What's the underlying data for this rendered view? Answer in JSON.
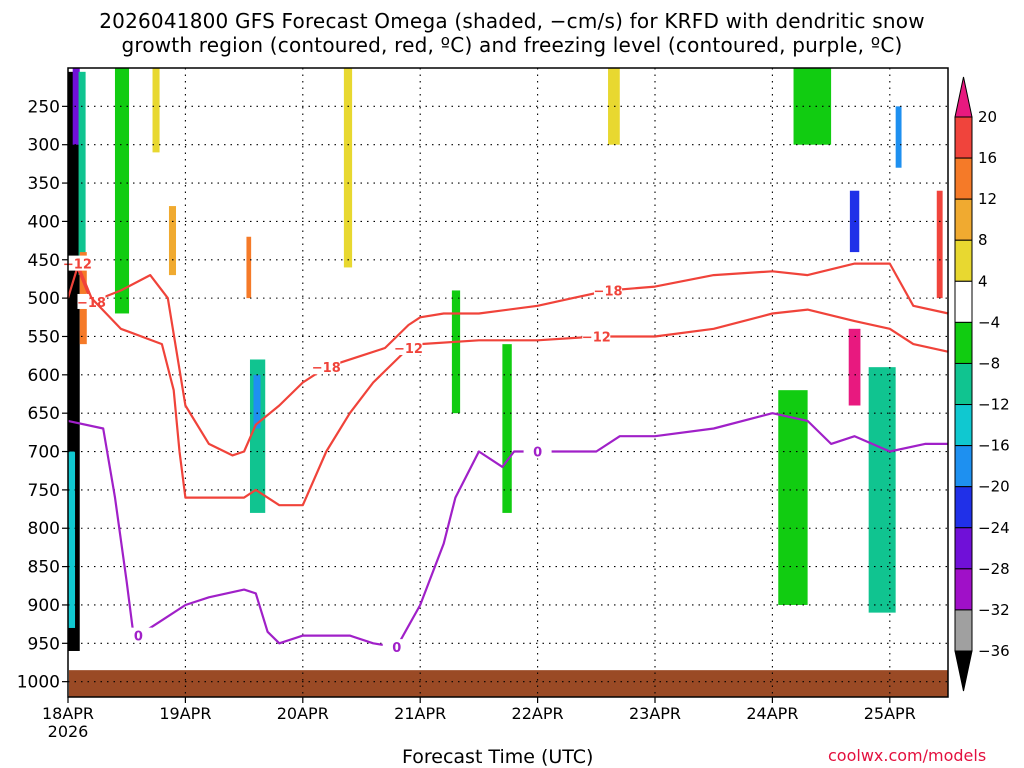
{
  "title": {
    "line1": "2026041800 GFS Forecast Omega (shaded, −cm/s) for KRFD with dendritic snow",
    "line2": "growth region (contoured, red, ºC) and freezing level (contoured, purple, ºC)"
  },
  "xlabel": "Forecast Time (UTC)",
  "credit": "coolwx.com/models",
  "colors": {
    "snow_contour": "#f0433a",
    "freezing_contour": "#a020c8",
    "ground": "#9a4a25",
    "grid": "#000000"
  },
  "chart_data": {
    "type": "heatmap",
    "title": "2026041800 GFS Forecast Omega (shaded, −cm/s) for KRFD with dendritic snow growth region (contoured, red, ºC) and freezing level (contoured, purple, ºC)",
    "xlabel": "Forecast Time (UTC)",
    "ylabel": "Pressure (hPa)",
    "x_range_days": [
      0,
      7.5
    ],
    "y_range_hpa": [
      200,
      1020
    ],
    "x_ticks": [
      {
        "day": 0,
        "label": "18APR",
        "sublabel": "2026"
      },
      {
        "day": 1,
        "label": "19APR"
      },
      {
        "day": 2,
        "label": "20APR"
      },
      {
        "day": 3,
        "label": "21APR"
      },
      {
        "day": 4,
        "label": "22APR"
      },
      {
        "day": 5,
        "label": "23APR"
      },
      {
        "day": 6,
        "label": "24APR"
      },
      {
        "day": 7,
        "label": "25APR"
      }
    ],
    "y_ticks": [
      {
        "p": 250,
        "label": "250"
      },
      {
        "p": 300,
        "label": "300"
      },
      {
        "p": 350,
        "label": "350"
      },
      {
        "p": 400,
        "label": "400"
      },
      {
        "p": 450,
        "label": "450"
      },
      {
        "p": 500,
        "label": "500"
      },
      {
        "p": 550,
        "label": "550"
      },
      {
        "p": 600,
        "label": "600"
      },
      {
        "p": 650,
        "label": "650"
      },
      {
        "p": 700,
        "label": "700"
      },
      {
        "p": 750,
        "label": "750"
      },
      {
        "p": 800,
        "label": "800"
      },
      {
        "p": 850,
        "label": "850"
      },
      {
        "p": 900,
        "label": "900"
      },
      {
        "p": 950,
        "label": "950"
      },
      {
        "p": 1000,
        "label": "1000"
      }
    ],
    "colorbar": {
      "labels": [
        "20",
        "16",
        "12",
        "8",
        "4",
        "−4",
        "−8",
        "−12",
        "−16",
        "−20",
        "−24",
        "−28",
        "−32",
        "−36"
      ],
      "bins": [
        {
          "lo": 20,
          "hi": 24,
          "color": "#e8197f"
        },
        {
          "lo": 16,
          "hi": 20,
          "color": "#f0443c"
        },
        {
          "lo": 12,
          "hi": 16,
          "color": "#f57a28"
        },
        {
          "lo": 8,
          "hi": 12,
          "color": "#f0aa30"
        },
        {
          "lo": 4,
          "hi": 8,
          "color": "#e8d830"
        },
        {
          "lo": -4,
          "hi": 4,
          "color": "#ffffff"
        },
        {
          "lo": -8,
          "hi": -4,
          "color": "#11cc11"
        },
        {
          "lo": -12,
          "hi": -8,
          "color": "#10c490"
        },
        {
          "lo": -16,
          "hi": -12,
          "color": "#10c8d0"
        },
        {
          "lo": -20,
          "hi": -16,
          "color": "#1e90f0"
        },
        {
          "lo": -24,
          "hi": -20,
          "color": "#2030e8"
        },
        {
          "lo": -28,
          "hi": -24,
          "color": "#7010d8"
        },
        {
          "lo": -32,
          "hi": -28,
          "color": "#a010c8"
        },
        {
          "lo": -36,
          "hi": -32,
          "color": "#a0a0a0"
        },
        {
          "lo": -40,
          "hi": -36,
          "color": "#000000"
        }
      ]
    },
    "omega_regions": [
      {
        "t0": 0.0,
        "t1": 0.1,
        "p0": 205,
        "p1": 960,
        "v": -40
      },
      {
        "t0": 0.04,
        "t1": 0.1,
        "p0": 200,
        "p1": 300,
        "v": -28
      },
      {
        "t0": 0.09,
        "t1": 0.15,
        "p0": 205,
        "p1": 470,
        "v": -12
      },
      {
        "t0": 0.0,
        "t1": 0.06,
        "p0": 700,
        "p1": 930,
        "v": -16
      },
      {
        "t0": 0.1,
        "t1": 0.16,
        "p0": 440,
        "p1": 560,
        "v": 12
      },
      {
        "t0": 0.4,
        "t1": 0.52,
        "p0": 200,
        "p1": 520,
        "v": -8
      },
      {
        "t0": 0.72,
        "t1": 0.78,
        "p0": 200,
        "p1": 310,
        "v": 6
      },
      {
        "t0": 0.86,
        "t1": 0.92,
        "p0": 380,
        "p1": 470,
        "v": 8
      },
      {
        "t0": 1.55,
        "t1": 1.68,
        "p0": 580,
        "p1": 780,
        "v": -12
      },
      {
        "t0": 1.58,
        "t1": 1.64,
        "p0": 600,
        "p1": 670,
        "v": -20
      },
      {
        "t0": 1.52,
        "t1": 1.56,
        "p0": 420,
        "p1": 500,
        "v": 12
      },
      {
        "t0": 2.35,
        "t1": 2.42,
        "p0": 200,
        "p1": 460,
        "v": 6
      },
      {
        "t0": 3.27,
        "t1": 3.34,
        "p0": 490,
        "p1": 650,
        "v": -8
      },
      {
        "t0": 3.7,
        "t1": 3.78,
        "p0": 560,
        "p1": 780,
        "v": -8
      },
      {
        "t0": 4.6,
        "t1": 4.7,
        "p0": 200,
        "p1": 300,
        "v": 6
      },
      {
        "t0": 6.05,
        "t1": 6.3,
        "p0": 620,
        "p1": 900,
        "v": -8
      },
      {
        "t0": 6.18,
        "t1": 6.5,
        "p0": 200,
        "p1": 300,
        "v": -8
      },
      {
        "t0": 6.65,
        "t1": 6.75,
        "p0": 540,
        "p1": 640,
        "v": 20
      },
      {
        "t0": 6.66,
        "t1": 6.74,
        "p0": 360,
        "p1": 440,
        "v": -22
      },
      {
        "t0": 6.82,
        "t1": 7.05,
        "p0": 590,
        "p1": 910,
        "v": -12
      },
      {
        "t0": 7.05,
        "t1": 7.1,
        "p0": 250,
        "p1": 330,
        "v": -18
      },
      {
        "t0": 7.4,
        "t1": 7.45,
        "p0": 360,
        "p1": 500,
        "v": 18
      }
    ],
    "snow_growth_contours": [
      {
        "label": "−18",
        "points": [
          [
            0.0,
            500
          ],
          [
            0.08,
            460
          ],
          [
            0.12,
            475
          ],
          [
            0.2,
            505
          ],
          [
            0.45,
            490
          ],
          [
            0.7,
            470
          ],
          [
            0.85,
            500
          ],
          [
            1.0,
            640
          ],
          [
            1.2,
            690
          ],
          [
            1.4,
            705
          ],
          [
            1.5,
            700
          ],
          [
            1.6,
            665
          ],
          [
            1.8,
            640
          ],
          [
            2.0,
            610
          ],
          [
            2.2,
            590
          ],
          [
            2.5,
            575
          ],
          [
            2.7,
            565
          ],
          [
            2.9,
            535
          ],
          [
            3.0,
            525
          ],
          [
            3.2,
            520
          ],
          [
            3.5,
            520
          ],
          [
            4.0,
            510
          ],
          [
            4.3,
            500
          ],
          [
            4.6,
            490
          ],
          [
            5.0,
            485
          ],
          [
            5.5,
            470
          ],
          [
            6.0,
            465
          ],
          [
            6.3,
            470
          ],
          [
            6.7,
            455
          ],
          [
            7.0,
            455
          ],
          [
            7.2,
            510
          ],
          [
            7.5,
            520
          ]
        ]
      },
      {
        "label": "−12",
        "points": [
          [
            0.0,
            460
          ],
          [
            0.08,
            455
          ],
          [
            0.2,
            500
          ],
          [
            0.45,
            540
          ],
          [
            0.8,
            560
          ],
          [
            0.9,
            620
          ],
          [
            0.95,
            700
          ],
          [
            1.0,
            760
          ],
          [
            1.2,
            760
          ],
          [
            1.5,
            760
          ],
          [
            1.6,
            750
          ],
          [
            1.8,
            770
          ],
          [
            2.0,
            770
          ],
          [
            2.2,
            700
          ],
          [
            2.4,
            650
          ],
          [
            2.6,
            610
          ],
          [
            2.9,
            565
          ],
          [
            3.0,
            560
          ],
          [
            3.5,
            555
          ],
          [
            4.0,
            555
          ],
          [
            4.5,
            550
          ],
          [
            5.0,
            550
          ],
          [
            5.5,
            540
          ],
          [
            6.0,
            520
          ],
          [
            6.3,
            515
          ],
          [
            6.7,
            530
          ],
          [
            7.0,
            540
          ],
          [
            7.2,
            560
          ],
          [
            7.5,
            570
          ]
        ]
      }
    ],
    "freezing_level_contours": [
      {
        "label": "0",
        "points": [
          [
            0.0,
            660
          ],
          [
            0.3,
            670
          ],
          [
            0.4,
            760
          ],
          [
            0.5,
            870
          ],
          [
            0.55,
            930
          ],
          [
            0.6,
            940
          ],
          [
            0.8,
            920
          ],
          [
            1.0,
            900
          ],
          [
            1.2,
            890
          ],
          [
            1.5,
            880
          ],
          [
            1.6,
            885
          ],
          [
            1.7,
            935
          ],
          [
            1.8,
            950
          ],
          [
            2.0,
            940
          ],
          [
            2.4,
            940
          ],
          [
            2.6,
            950
          ],
          [
            2.8,
            955
          ],
          [
            3.0,
            900
          ],
          [
            3.2,
            820
          ],
          [
            3.3,
            760
          ],
          [
            3.5,
            700
          ],
          [
            3.7,
            720
          ],
          [
            3.8,
            700
          ],
          [
            4.0,
            700
          ],
          [
            4.3,
            700
          ],
          [
            4.5,
            700
          ],
          [
            4.7,
            680
          ],
          [
            5.0,
            680
          ],
          [
            5.5,
            670
          ],
          [
            6.0,
            650
          ],
          [
            6.3,
            660
          ],
          [
            6.5,
            690
          ],
          [
            6.7,
            680
          ],
          [
            7.0,
            700
          ],
          [
            7.3,
            690
          ],
          [
            7.5,
            690
          ]
        ]
      }
    ]
  }
}
